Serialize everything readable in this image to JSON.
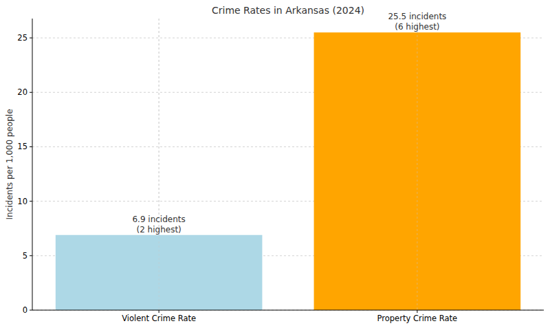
{
  "chart_data": {
    "type": "bar",
    "title": "Crime Rates in Arkansas (2024)",
    "y_label": "Incidents per 1,000 people",
    "categories": [
      "Violent Crime Rate",
      "Property Crime Rate"
    ],
    "values": [
      6.9,
      25.5
    ],
    "value_labels": [
      "6.9 incidents",
      "25.5 incidents"
    ],
    "annotations": [
      "(2 highest)",
      "(6 highest)"
    ],
    "colors": [
      "#add8e6",
      "#ffa500"
    ],
    "ylim": [
      0,
      26.775
    ],
    "yticks": [
      0,
      5,
      10,
      15,
      20,
      25
    ],
    "grid": true,
    "data_labels": true
  }
}
